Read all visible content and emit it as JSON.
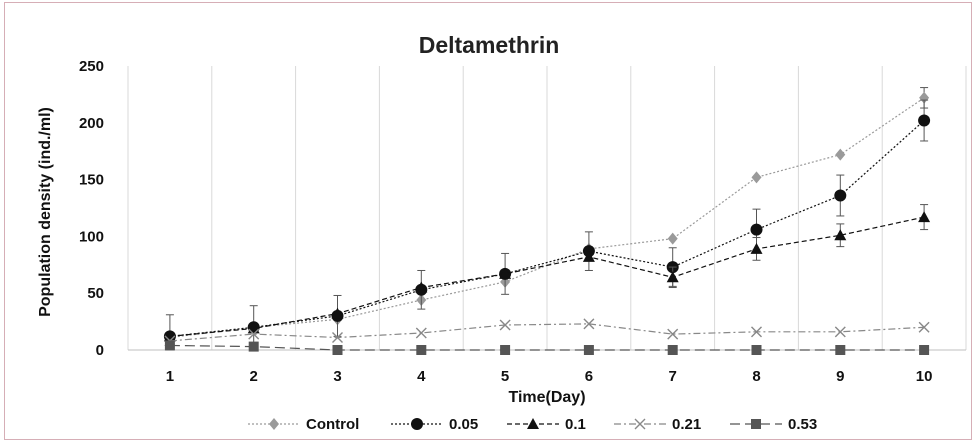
{
  "chart_data": {
    "type": "line",
    "title": "Deltamethrin",
    "xlabel": "Time(Day)",
    "ylabel": "Population density (ind./ml)",
    "ylim": [
      0,
      250
    ],
    "yticks": [
      0,
      50,
      100,
      150,
      200,
      250
    ],
    "x": [
      1,
      2,
      3,
      4,
      5,
      6,
      7,
      8,
      9,
      10
    ],
    "grid": "vertical",
    "legend_position": "bottom",
    "series": [
      {
        "name": "Control",
        "marker": "diamond",
        "dash": "dotted",
        "color": "#9a9a9a",
        "values": [
          11,
          20,
          27,
          44,
          60,
          89,
          98,
          152,
          172,
          222
        ],
        "error": [
          0,
          0,
          0,
          0,
          0,
          0,
          0,
          0,
          0,
          9
        ]
      },
      {
        "name": "0.05",
        "marker": "circle",
        "dash": "dotted",
        "color": "#111111",
        "values": [
          12,
          20,
          30,
          53,
          67,
          87,
          73,
          106,
          136,
          202
        ],
        "error": [
          19,
          19,
          18,
          17,
          18,
          17,
          17,
          18,
          18,
          18
        ]
      },
      {
        "name": "0.1",
        "marker": "triangle",
        "dash": "dashed",
        "color": "#111111",
        "values": [
          12,
          19,
          32,
          55,
          67,
          82,
          64,
          89,
          101,
          117
        ],
        "error": [
          0,
          0,
          0,
          0,
          0,
          0,
          9,
          10,
          10,
          11
        ]
      },
      {
        "name": "0.21",
        "marker": "x",
        "dash": "dashdot",
        "color": "#888888",
        "values": [
          8,
          14,
          11,
          15,
          22,
          23,
          14,
          16,
          16,
          20
        ],
        "error": [
          0,
          0,
          0,
          0,
          0,
          0,
          0,
          0,
          0,
          0
        ]
      },
      {
        "name": "0.53",
        "marker": "square",
        "dash": "longdash",
        "color": "#555555",
        "values": [
          4,
          3,
          0,
          0,
          0,
          0,
          0,
          0,
          0,
          0
        ],
        "error": [
          0,
          0,
          0,
          0,
          0,
          0,
          0,
          0,
          0,
          0
        ]
      }
    ]
  }
}
